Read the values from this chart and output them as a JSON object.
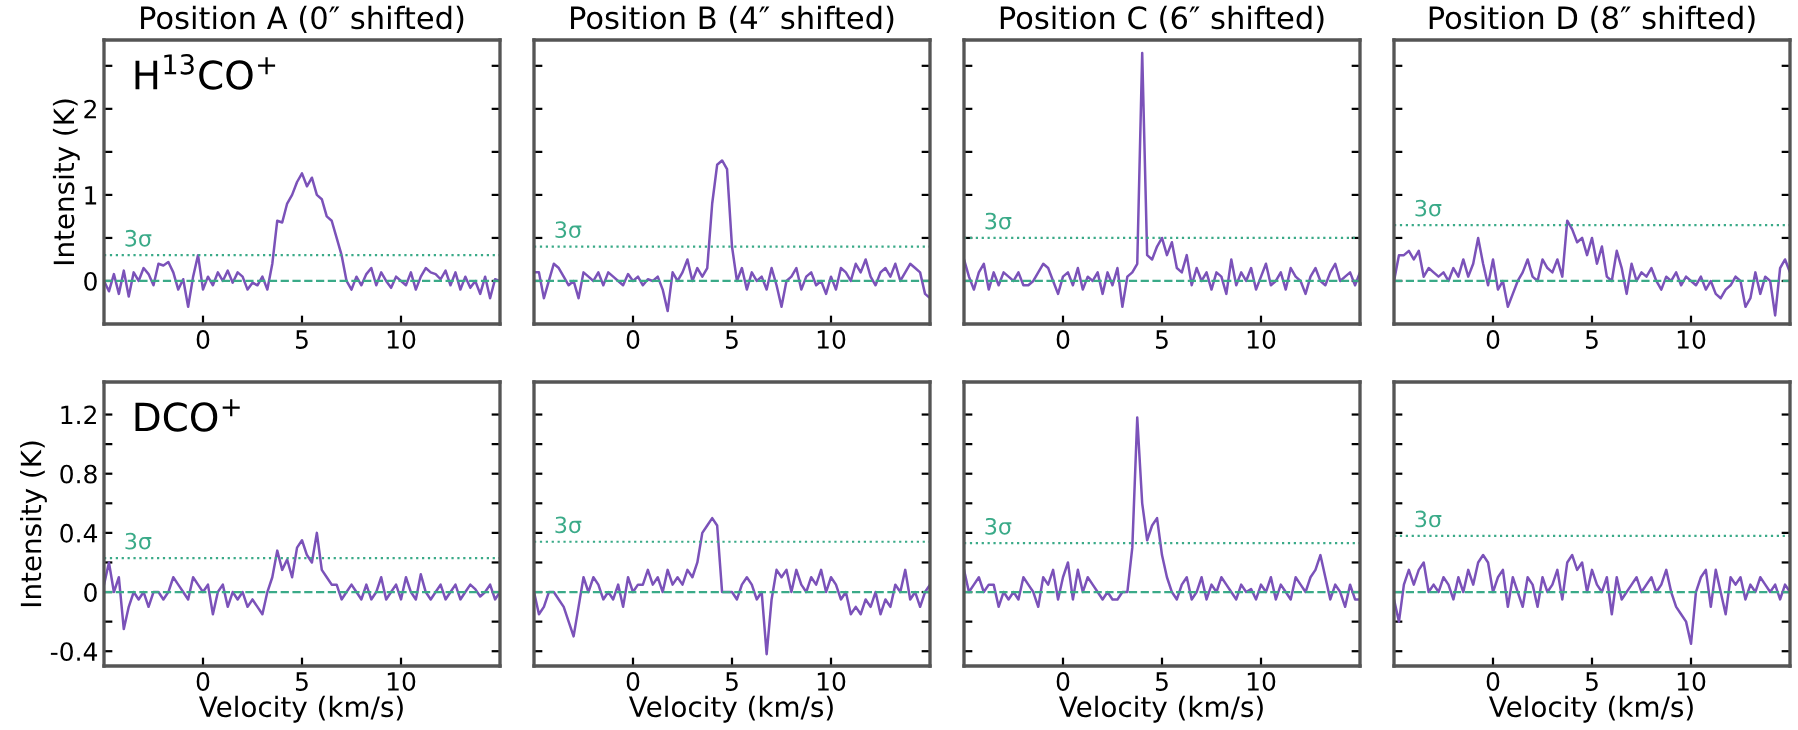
{
  "chart_data": [
    {
      "type": "line",
      "title": "Position A (0″ shifted)",
      "ylabel": "Intensity (K)",
      "annotations": [
        "H$^{13}$CO$^{+}$"
      ],
      "xlim": [
        -5,
        15
      ],
      "ylim": [
        -0.5,
        2.8
      ],
      "xticks": [
        0,
        5,
        10
      ],
      "yticks": [
        0,
        {
          "value": 0.5,
          "label": null
        },
        1,
        {
          "value": 1.5,
          "label": null
        },
        2,
        {
          "value": 2.5,
          "label": null
        }
      ],
      "grid": false,
      "x": [
        -5,
        -4.75,
        -4.5,
        -4.25,
        -4,
        -3.75,
        -3.5,
        -3.25,
        -3,
        -2.75,
        -2.5,
        -2.25,
        -2,
        -1.75,
        -1.5,
        -1.25,
        -1,
        -0.75,
        -0.5,
        -0.25,
        0,
        0.25,
        0.5,
        0.75,
        1,
        1.25,
        1.5,
        1.75,
        2,
        2.25,
        2.5,
        2.75,
        3,
        3.25,
        3.5,
        3.75,
        4,
        4.25,
        4.5,
        4.75,
        5,
        5.25,
        5.5,
        5.75,
        6,
        6.25,
        6.5,
        6.75,
        7,
        7.25,
        7.5,
        7.75,
        8,
        8.25,
        8.5,
        8.75,
        9,
        9.25,
        9.5,
        9.75,
        10,
        10.25,
        10.5,
        10.75,
        11,
        11.25,
        11.5,
        11.75,
        12,
        12.25,
        12.5,
        12.75,
        13,
        13.25,
        13.5,
        13.75,
        14,
        14.25,
        14.5,
        14.75,
        15
      ],
      "series": [
        {
          "color": "#7b52b9",
          "values": [
            0.0,
            -0.12,
            0.08,
            -0.15,
            0.12,
            -0.18,
            0.1,
            0.0,
            0.15,
            0.08,
            -0.05,
            0.2,
            0.18,
            0.22,
            0.1,
            -0.1,
            0.02,
            -0.3,
            0.05,
            0.3,
            -0.1,
            0.05,
            -0.05,
            0.1,
            0.0,
            0.12,
            -0.02,
            0.1,
            0.05,
            -0.1,
            -0.02,
            -0.05,
            0.05,
            -0.1,
            0.2,
            0.7,
            0.68,
            0.9,
            1.0,
            1.15,
            1.25,
            1.1,
            1.2,
            1.0,
            0.95,
            0.75,
            0.7,
            0.5,
            0.3,
            0.0,
            -0.1,
            0.05,
            -0.05,
            0.08,
            0.15,
            -0.05,
            0.1,
            0.0,
            -0.08,
            0.05,
            0.0,
            -0.05,
            0.1,
            -0.1,
            0.05,
            0.15,
            0.1,
            0.08,
            0.02,
            0.12,
            -0.05,
            0.1,
            -0.1,
            0.05,
            -0.08,
            0.0,
            -0.15,
            0.05,
            -0.2,
            0.02,
            0.0
          ]
        }
      ],
      "ref_lines": [
        {
          "axis": "y",
          "value": 0,
          "color": "#3aaa88",
          "line_style": "dashed"
        },
        {
          "axis": "y",
          "value": 0.3,
          "label": "3σ",
          "color": "#3aaa88",
          "line_style": "dotted"
        }
      ]
    },
    {
      "type": "line",
      "title": "Position B (4″ shifted)",
      "tick_labels": "x",
      "xlim": [
        -5,
        15
      ],
      "ylim": [
        -0.5,
        2.8
      ],
      "xticks": [
        0,
        5,
        10
      ],
      "yticks": [
        0,
        {
          "value": 0.5,
          "label": null
        },
        1,
        {
          "value": 1.5,
          "label": null
        },
        2,
        {
          "value": 2.5,
          "label": null
        }
      ],
      "grid": false,
      "x": [
        -5,
        -4.75,
        -4.5,
        -4.25,
        -4,
        -3.75,
        -3.5,
        -3.25,
        -3,
        -2.75,
        -2.5,
        -2.25,
        -2,
        -1.75,
        -1.5,
        -1.25,
        -1,
        -0.75,
        -0.5,
        -0.25,
        0,
        0.25,
        0.5,
        0.75,
        1,
        1.25,
        1.5,
        1.75,
        2,
        2.25,
        2.5,
        2.75,
        3,
        3.25,
        3.5,
        3.75,
        4,
        4.25,
        4.5,
        4.75,
        5,
        5.25,
        5.5,
        5.75,
        6,
        6.25,
        6.5,
        6.75,
        7,
        7.25,
        7.5,
        7.75,
        8,
        8.25,
        8.5,
        8.75,
        9,
        9.25,
        9.5,
        9.75,
        10,
        10.25,
        10.5,
        10.75,
        11,
        11.25,
        11.5,
        11.75,
        12,
        12.25,
        12.5,
        12.75,
        13,
        13.25,
        13.5,
        13.75,
        14,
        14.25,
        14.5,
        14.75,
        15
      ],
      "series": [
        {
          "color": "#7b52b9",
          "values": [
            0.1,
            0.1,
            -0.2,
            0.0,
            0.2,
            0.15,
            0.05,
            -0.05,
            0.0,
            -0.2,
            0.1,
            0.05,
            0.0,
            0.1,
            -0.05,
            0.1,
            0.05,
            0.0,
            -0.05,
            0.08,
            0.0,
            0.05,
            -0.05,
            0.02,
            0.0,
            0.05,
            -0.1,
            -0.35,
            0.1,
            0.0,
            0.1,
            0.25,
            0.0,
            0.15,
            0.05,
            0.15,
            0.9,
            1.35,
            1.4,
            1.3,
            0.4,
            0.0,
            0.15,
            -0.1,
            0.1,
            0.0,
            0.05,
            -0.1,
            0.15,
            -0.05,
            -0.3,
            0.0,
            0.05,
            0.15,
            -0.1,
            0.05,
            0.1,
            -0.05,
            0.0,
            -0.15,
            0.05,
            -0.1,
            0.15,
            0.1,
            0.0,
            0.2,
            0.1,
            0.25,
            0.05,
            -0.05,
            0.1,
            0.15,
            0.05,
            0.2,
            0.0,
            0.1,
            0.2,
            0.15,
            0.1,
            -0.15,
            -0.2
          ]
        }
      ],
      "ref_lines": [
        {
          "axis": "y",
          "value": 0,
          "color": "#3aaa88",
          "line_style": "dashed"
        },
        {
          "axis": "y",
          "value": 0.4,
          "label": "3σ",
          "color": "#3aaa88",
          "line_style": "dotted"
        }
      ]
    },
    {
      "type": "line",
      "title": "Position C (6″ shifted)",
      "tick_labels": "x",
      "xlim": [
        -5,
        15
      ],
      "ylim": [
        -0.5,
        2.8
      ],
      "xticks": [
        0,
        5,
        10
      ],
      "yticks": [
        0,
        {
          "value": 0.5,
          "label": null
        },
        1,
        {
          "value": 1.5,
          "label": null
        },
        2,
        {
          "value": 2.5,
          "label": null
        }
      ],
      "grid": false,
      "x": [
        -5,
        -4.75,
        -4.5,
        -4.25,
        -4,
        -3.75,
        -3.5,
        -3.25,
        -3,
        -2.75,
        -2.5,
        -2.25,
        -2,
        -1.75,
        -1.5,
        -1.25,
        -1,
        -0.75,
        -0.5,
        -0.25,
        0,
        0.25,
        0.5,
        0.75,
        1,
        1.25,
        1.5,
        1.75,
        2,
        2.25,
        2.5,
        2.75,
        3,
        3.25,
        3.5,
        3.75,
        4,
        4.25,
        4.5,
        4.75,
        5,
        5.25,
        5.5,
        5.75,
        6,
        6.25,
        6.5,
        6.75,
        7,
        7.25,
        7.5,
        7.75,
        8,
        8.25,
        8.5,
        8.75,
        9,
        9.25,
        9.5,
        9.75,
        10,
        10.25,
        10.5,
        10.75,
        11,
        11.25,
        11.5,
        11.75,
        12,
        12.25,
        12.5,
        12.75,
        13,
        13.25,
        13.5,
        13.75,
        14,
        14.25,
        14.5,
        14.75,
        15
      ],
      "series": [
        {
          "color": "#7b52b9",
          "values": [
            0.25,
            0.05,
            -0.1,
            0.1,
            0.2,
            -0.1,
            0.1,
            -0.05,
            0.1,
            0.05,
            0.0,
            0.1,
            -0.05,
            -0.05,
            0.0,
            0.1,
            0.2,
            0.15,
            0.0,
            -0.15,
            0.05,
            0.1,
            -0.05,
            0.15,
            -0.1,
            0.05,
            0.0,
            0.1,
            -0.15,
            0.1,
            -0.05,
            0.15,
            -0.3,
            0.05,
            0.1,
            0.2,
            2.65,
            0.3,
            0.25,
            0.4,
            0.5,
            0.3,
            0.45,
            0.15,
            0.1,
            0.3,
            -0.05,
            0.15,
            0.0,
            0.1,
            -0.1,
            0.1,
            0.05,
            -0.15,
            0.25,
            -0.05,
            0.1,
            0.0,
            0.15,
            -0.1,
            0.05,
            0.2,
            -0.05,
            0.0,
            0.1,
            -0.1,
            0.15,
            0.05,
            0.0,
            -0.15,
            0.05,
            0.15,
            0.0,
            -0.05,
            0.1,
            0.2,
            0.0,
            0.05,
            0.1,
            -0.05,
            0.1
          ]
        }
      ],
      "ref_lines": [
        {
          "axis": "y",
          "value": 0,
          "color": "#3aaa88",
          "line_style": "dashed"
        },
        {
          "axis": "y",
          "value": 0.5,
          "label": "3σ",
          "color": "#3aaa88",
          "line_style": "dotted"
        }
      ]
    },
    {
      "type": "line",
      "title": "Position D (8″ shifted)",
      "tick_labels": "x",
      "xlim": [
        -5,
        15
      ],
      "ylim": [
        -0.5,
        2.8
      ],
      "xticks": [
        0,
        5,
        10
      ],
      "yticks": [
        0,
        {
          "value": 0.5,
          "label": null
        },
        1,
        {
          "value": 1.5,
          "label": null
        },
        2,
        {
          "value": 2.5,
          "label": null
        }
      ],
      "grid": false,
      "x": [
        -5,
        -4.75,
        -4.5,
        -4.25,
        -4,
        -3.75,
        -3.5,
        -3.25,
        -3,
        -2.75,
        -2.5,
        -2.25,
        -2,
        -1.75,
        -1.5,
        -1.25,
        -1,
        -0.75,
        -0.5,
        -0.25,
        0,
        0.25,
        0.5,
        0.75,
        1,
        1.25,
        1.5,
        1.75,
        2,
        2.25,
        2.5,
        2.75,
        3,
        3.25,
        3.5,
        3.75,
        4,
        4.25,
        4.5,
        4.75,
        5,
        5.25,
        5.5,
        5.75,
        6,
        6.25,
        6.5,
        6.75,
        7,
        7.25,
        7.5,
        7.75,
        8,
        8.25,
        8.5,
        8.75,
        9,
        9.25,
        9.5,
        9.75,
        10,
        10.25,
        10.5,
        10.75,
        11,
        11.25,
        11.5,
        11.75,
        12,
        12.25,
        12.5,
        12.75,
        13,
        13.25,
        13.5,
        13.75,
        14,
        14.25,
        14.5,
        14.75,
        15
      ],
      "series": [
        {
          "color": "#7b52b9",
          "values": [
            0.0,
            0.3,
            0.3,
            0.35,
            0.25,
            0.35,
            0.05,
            0.15,
            0.1,
            0.05,
            0.1,
            0.0,
            0.15,
            0.05,
            0.25,
            0.05,
            0.2,
            0.5,
            0.2,
            -0.05,
            0.25,
            -0.1,
            0.0,
            -0.3,
            -0.15,
            0.0,
            0.1,
            0.25,
            0.05,
            0.0,
            0.25,
            0.15,
            0.1,
            0.25,
            0.05,
            0.7,
            0.6,
            0.45,
            0.5,
            0.3,
            0.5,
            0.2,
            0.4,
            0.05,
            0.0,
            0.35,
            0.15,
            -0.15,
            0.2,
            0.0,
            0.1,
            0.05,
            0.15,
            0.0,
            -0.1,
            0.05,
            0.0,
            0.1,
            -0.05,
            0.05,
            0.0,
            -0.05,
            0.05,
            -0.1,
            0.0,
            -0.15,
            -0.2,
            -0.1,
            -0.05,
            0.05,
            0.0,
            -0.3,
            -0.2,
            0.1,
            -0.15,
            0.05,
            0.0,
            -0.4,
            0.15,
            0.25,
            0.1
          ]
        }
      ],
      "ref_lines": [
        {
          "axis": "y",
          "value": 0,
          "color": "#3aaa88",
          "line_style": "dashed"
        },
        {
          "axis": "y",
          "value": 0.65,
          "label": "3σ",
          "color": "#3aaa88",
          "line_style": "dotted"
        }
      ]
    },
    {
      "type": "line",
      "xlabel": "Velocity (km/s)",
      "ylabel": "Intensity (K)",
      "annotations": [
        "DCO$^{+}$"
      ],
      "xlim": [
        -5,
        15
      ],
      "ylim": [
        -0.5,
        1.42
      ],
      "xticks": [
        0,
        5,
        10
      ],
      "yticks": [
        -0.4,
        {
          "value": -0.2,
          "label": null
        },
        0,
        {
          "value": 0.2,
          "label": null
        },
        0.4,
        {
          "value": 0.6,
          "label": null
        },
        0.8,
        {
          "value": 1.0,
          "label": null
        },
        1.2
      ],
      "grid": false,
      "x": [
        -5,
        -4.75,
        -4.5,
        -4.25,
        -4,
        -3.75,
        -3.5,
        -3.25,
        -3,
        -2.75,
        -2.5,
        -2.25,
        -2,
        -1.75,
        -1.5,
        -1.25,
        -1,
        -0.75,
        -0.5,
        -0.25,
        0,
        0.25,
        0.5,
        0.75,
        1,
        1.25,
        1.5,
        1.75,
        2,
        2.25,
        2.5,
        2.75,
        3,
        3.25,
        3.5,
        3.75,
        4,
        4.25,
        4.5,
        4.75,
        5,
        5.25,
        5.5,
        5.75,
        6,
        6.25,
        6.5,
        6.75,
        7,
        7.25,
        7.5,
        7.75,
        8,
        8.25,
        8.5,
        8.75,
        9,
        9.25,
        9.5,
        9.75,
        10,
        10.25,
        10.5,
        10.75,
        11,
        11.25,
        11.5,
        11.75,
        12,
        12.25,
        12.5,
        12.75,
        13,
        13.25,
        13.5,
        13.75,
        14,
        14.25,
        14.5,
        14.75,
        15
      ],
      "series": [
        {
          "color": "#7b52b9",
          "values": [
            0.05,
            0.2,
            0.0,
            0.1,
            -0.25,
            -0.1,
            0.0,
            -0.05,
            0.0,
            -0.1,
            0.0,
            0.0,
            -0.05,
            0.0,
            0.1,
            0.05,
            0.0,
            -0.05,
            0.1,
            0.05,
            0.0,
            0.05,
            -0.15,
            0.0,
            0.05,
            -0.1,
            0.0,
            -0.05,
            0.0,
            -0.1,
            -0.05,
            -0.1,
            -0.15,
            0.0,
            0.1,
            0.28,
            0.15,
            0.22,
            0.1,
            0.3,
            0.35,
            0.25,
            0.2,
            0.4,
            0.15,
            0.1,
            0.05,
            0.05,
            -0.05,
            0.0,
            0.05,
            0.0,
            -0.05,
            0.05,
            -0.05,
            0.0,
            0.1,
            -0.05,
            0.0,
            0.05,
            -0.05,
            0.1,
            0.0,
            -0.05,
            0.12,
            0.0,
            -0.05,
            0.0,
            0.05,
            -0.05,
            0.0,
            0.05,
            -0.05,
            0.0,
            0.05,
            0.02,
            -0.03,
            0.0,
            0.05,
            -0.05,
            0.0
          ]
        }
      ],
      "ref_lines": [
        {
          "axis": "y",
          "value": 0,
          "color": "#3aaa88",
          "line_style": "dashed"
        },
        {
          "axis": "y",
          "value": 0.23,
          "label": "3σ",
          "color": "#3aaa88",
          "line_style": "dotted"
        }
      ]
    },
    {
      "type": "line",
      "xlabel": "Velocity (km/s)",
      "tick_labels": "x",
      "xlim": [
        -5,
        15
      ],
      "ylim": [
        -0.5,
        1.42
      ],
      "xticks": [
        0,
        5,
        10
      ],
      "yticks": [
        -0.4,
        {
          "value": -0.2,
          "label": null
        },
        0,
        {
          "value": 0.2,
          "label": null
        },
        0.4,
        {
          "value": 0.6,
          "label": null
        },
        0.8,
        {
          "value": 1.0,
          "label": null
        },
        1.2
      ],
      "grid": false,
      "x": [
        -5,
        -4.75,
        -4.5,
        -4.25,
        -4,
        -3.75,
        -3.5,
        -3.25,
        -3,
        -2.75,
        -2.5,
        -2.25,
        -2,
        -1.75,
        -1.5,
        -1.25,
        -1,
        -0.75,
        -0.5,
        -0.25,
        0,
        0.25,
        0.5,
        0.75,
        1,
        1.25,
        1.5,
        1.75,
        2,
        2.25,
        2.5,
        2.75,
        3,
        3.25,
        3.5,
        3.75,
        4,
        4.25,
        4.5,
        4.75,
        5,
        5.25,
        5.5,
        5.75,
        6,
        6.25,
        6.5,
        6.75,
        7,
        7.25,
        7.5,
        7.75,
        8,
        8.25,
        8.5,
        8.75,
        9,
        9.25,
        9.5,
        9.75,
        10,
        10.25,
        10.5,
        10.75,
        11,
        11.25,
        11.5,
        11.75,
        12,
        12.25,
        12.5,
        12.75,
        13,
        13.25,
        13.5,
        13.75,
        14,
        14.25,
        14.5,
        14.75,
        15
      ],
      "series": [
        {
          "color": "#7b52b9",
          "values": [
            0.0,
            -0.15,
            -0.1,
            0.0,
            0.0,
            -0.05,
            -0.1,
            -0.2,
            -0.3,
            -0.1,
            0.1,
            0.0,
            0.1,
            0.05,
            -0.05,
            0.0,
            -0.05,
            0.05,
            -0.1,
            0.1,
            0.0,
            0.05,
            0.05,
            0.15,
            0.05,
            0.1,
            0.0,
            0.15,
            0.05,
            0.1,
            0.05,
            0.15,
            0.1,
            0.2,
            0.4,
            0.45,
            0.5,
            0.45,
            0.0,
            0.0,
            0.0,
            -0.05,
            0.05,
            0.1,
            0.05,
            -0.05,
            0.0,
            -0.42,
            -0.05,
            0.15,
            0.1,
            0.15,
            0.0,
            0.15,
            0.05,
            0.0,
            0.1,
            0.05,
            0.15,
            0.0,
            0.1,
            0.05,
            -0.05,
            0.0,
            -0.15,
            -0.1,
            -0.15,
            -0.05,
            -0.1,
            0.0,
            -0.15,
            -0.05,
            -0.1,
            0.05,
            0.0,
            0.15,
            -0.05,
            0.0,
            -0.1,
            0.0,
            0.05
          ]
        }
      ],
      "ref_lines": [
        {
          "axis": "y",
          "value": 0,
          "color": "#3aaa88",
          "line_style": "dashed"
        },
        {
          "axis": "y",
          "value": 0.34,
          "label": "3σ",
          "color": "#3aaa88",
          "line_style": "dotted"
        }
      ]
    },
    {
      "type": "line",
      "xlabel": "Velocity (km/s)",
      "tick_labels": "x",
      "xlim": [
        -5,
        15
      ],
      "ylim": [
        -0.5,
        1.42
      ],
      "xticks": [
        0,
        5,
        10
      ],
      "yticks": [
        -0.4,
        {
          "value": -0.2,
          "label": null
        },
        0,
        {
          "value": 0.2,
          "label": null
        },
        0.4,
        {
          "value": 0.6,
          "label": null
        },
        0.8,
        {
          "value": 1.0,
          "label": null
        },
        1.2
      ],
      "grid": false,
      "x": [
        -5,
        -4.75,
        -4.5,
        -4.25,
        -4,
        -3.75,
        -3.5,
        -3.25,
        -3,
        -2.75,
        -2.5,
        -2.25,
        -2,
        -1.75,
        -1.5,
        -1.25,
        -1,
        -0.75,
        -0.5,
        -0.25,
        0,
        0.25,
        0.5,
        0.75,
        1,
        1.25,
        1.5,
        1.75,
        2,
        2.25,
        2.5,
        2.75,
        3,
        3.25,
        3.5,
        3.75,
        4,
        4.25,
        4.5,
        4.75,
        5,
        5.25,
        5.5,
        5.75,
        6,
        6.25,
        6.5,
        6.75,
        7,
        7.25,
        7.5,
        7.75,
        8,
        8.25,
        8.5,
        8.75,
        9,
        9.25,
        9.5,
        9.75,
        10,
        10.25,
        10.5,
        10.75,
        11,
        11.25,
        11.5,
        11.75,
        12,
        12.25,
        12.5,
        12.75,
        13,
        13.25,
        13.5,
        13.75,
        14,
        14.25,
        14.5,
        14.75,
        15
      ],
      "series": [
        {
          "color": "#7b52b9",
          "values": [
            0.15,
            0.0,
            0.05,
            0.1,
            0.0,
            0.05,
            0.05,
            -0.1,
            0.0,
            -0.05,
            0.0,
            -0.05,
            0.1,
            0.05,
            0.0,
            -0.1,
            0.1,
            0.05,
            0.15,
            -0.05,
            0.1,
            0.2,
            -0.05,
            0.15,
            0.0,
            0.1,
            0.05,
            0.0,
            -0.05,
            0.0,
            -0.05,
            -0.05,
            0.0,
            0.0,
            0.3,
            1.18,
            0.6,
            0.35,
            0.45,
            0.5,
            0.25,
            0.1,
            0.0,
            -0.05,
            0.05,
            0.1,
            -0.05,
            0.0,
            0.1,
            -0.05,
            0.05,
            0.0,
            0.1,
            0.05,
            0.0,
            -0.05,
            0.05,
            0.0,
            0.02,
            -0.05,
            0.05,
            0.0,
            0.1,
            -0.05,
            0.05,
            0.0,
            -0.05,
            0.1,
            0.05,
            0.0,
            0.1,
            0.15,
            0.25,
            0.1,
            -0.05,
            0.05,
            0.0,
            -0.1,
            0.05,
            -0.05,
            -0.05
          ]
        }
      ],
      "ref_lines": [
        {
          "axis": "y",
          "value": 0,
          "color": "#3aaa88",
          "line_style": "dashed"
        },
        {
          "axis": "y",
          "value": 0.33,
          "label": "3σ",
          "color": "#3aaa88",
          "line_style": "dotted"
        }
      ]
    },
    {
      "type": "line",
      "xlabel": "Velocity (km/s)",
      "tick_labels": "x",
      "xlim": [
        -5,
        15
      ],
      "ylim": [
        -0.5,
        1.42
      ],
      "xticks": [
        0,
        5,
        10
      ],
      "yticks": [
        -0.4,
        {
          "value": -0.2,
          "label": null
        },
        0,
        {
          "value": 0.2,
          "label": null
        },
        0.4,
        {
          "value": 0.6,
          "label": null
        },
        0.8,
        {
          "value": 1.0,
          "label": null
        },
        1.2
      ],
      "grid": false,
      "x": [
        -5,
        -4.75,
        -4.5,
        -4.25,
        -4,
        -3.75,
        -3.5,
        -3.25,
        -3,
        -2.75,
        -2.5,
        -2.25,
        -2,
        -1.75,
        -1.5,
        -1.25,
        -1,
        -0.75,
        -0.5,
        -0.25,
        0,
        0.25,
        0.5,
        0.75,
        1,
        1.25,
        1.5,
        1.75,
        2,
        2.25,
        2.5,
        2.75,
        3,
        3.25,
        3.5,
        3.75,
        4,
        4.25,
        4.5,
        4.75,
        5,
        5.25,
        5.5,
        5.75,
        6,
        6.25,
        6.5,
        6.75,
        7,
        7.25,
        7.5,
        7.75,
        8,
        8.25,
        8.5,
        8.75,
        9,
        9.25,
        9.5,
        9.75,
        10,
        10.25,
        10.5,
        10.75,
        11,
        11.25,
        11.5,
        11.75,
        12,
        12.25,
        12.5,
        12.75,
        13,
        13.25,
        13.5,
        13.75,
        14,
        14.25,
        14.5,
        14.75,
        15
      ],
      "series": [
        {
          "color": "#7b52b9",
          "values": [
            -0.05,
            -0.2,
            0.05,
            0.15,
            0.05,
            0.15,
            0.2,
            0.0,
            0.05,
            0.0,
            0.1,
            0.05,
            -0.05,
            0.1,
            0.0,
            0.15,
            0.05,
            0.2,
            0.25,
            0.2,
            0.0,
            0.1,
            0.15,
            -0.1,
            0.1,
            0.0,
            -0.1,
            0.1,
            0.05,
            -0.1,
            0.1,
            0.0,
            0.05,
            0.15,
            -0.05,
            0.2,
            0.25,
            0.15,
            0.2,
            0.0,
            0.15,
            0.05,
            0.0,
            0.1,
            -0.15,
            0.1,
            -0.05,
            0.0,
            0.05,
            0.1,
            0.0,
            0.05,
            0.1,
            0.0,
            0.05,
            0.15,
            0.0,
            -0.1,
            -0.15,
            -0.2,
            -0.35,
            0.0,
            0.1,
            0.15,
            -0.1,
            0.15,
            0.0,
            -0.15,
            0.1,
            0.05,
            0.1,
            -0.05,
            0.05,
            0.0,
            0.1,
            0.05,
            0.0,
            0.05,
            -0.05,
            0.05,
            0.0
          ]
        }
      ],
      "ref_lines": [
        {
          "axis": "y",
          "value": 0,
          "color": "#3aaa88",
          "line_style": "dashed"
        },
        {
          "axis": "y",
          "value": 0.38,
          "label": "3σ",
          "color": "#3aaa88",
          "line_style": "dotted"
        }
      ]
    }
  ]
}
